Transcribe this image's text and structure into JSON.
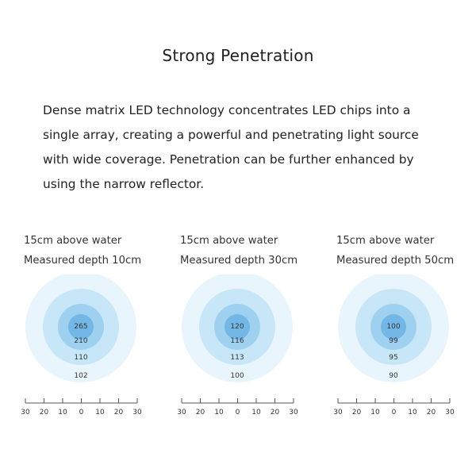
{
  "title": "Strong Penetration",
  "paragraph": {
    "lines": [
      "Dense matrix LED technology concentrates LED chips into a",
      "single array, creating a powerful and penetrating light source",
      "with wide coverage. Penetration can be further enhanced by",
      "using the narrow reflector."
    ]
  },
  "panels": [
    {
      "height_label": "15cm above water",
      "depth_label": "Measured depth 10cm",
      "readings": [
        "265",
        "210",
        "110",
        "102"
      ],
      "ticks": [
        "30",
        "20",
        "10",
        "0",
        "10",
        "20",
        "30"
      ]
    },
    {
      "height_label": "15cm above water",
      "depth_label": "Measured depth 30cm",
      "readings": [
        "120",
        "116",
        "113",
        "100"
      ],
      "ticks": [
        "30",
        "20",
        "10",
        "0",
        "10",
        "20",
        "30"
      ]
    },
    {
      "height_label": "15cm above water",
      "depth_label": "Measured depth 50cm",
      "readings": [
        "100",
        "99",
        "95",
        "90"
      ],
      "ticks": [
        "30",
        "20",
        "10",
        "0",
        "10",
        "20",
        "30"
      ]
    }
  ],
  "colors": {
    "ring_outer": "#e8f5fd",
    "ring_2": "#c7e6f7",
    "ring_3": "#9ed1f0",
    "ring_center": "#73b7e6",
    "scale_line": "#555555"
  }
}
